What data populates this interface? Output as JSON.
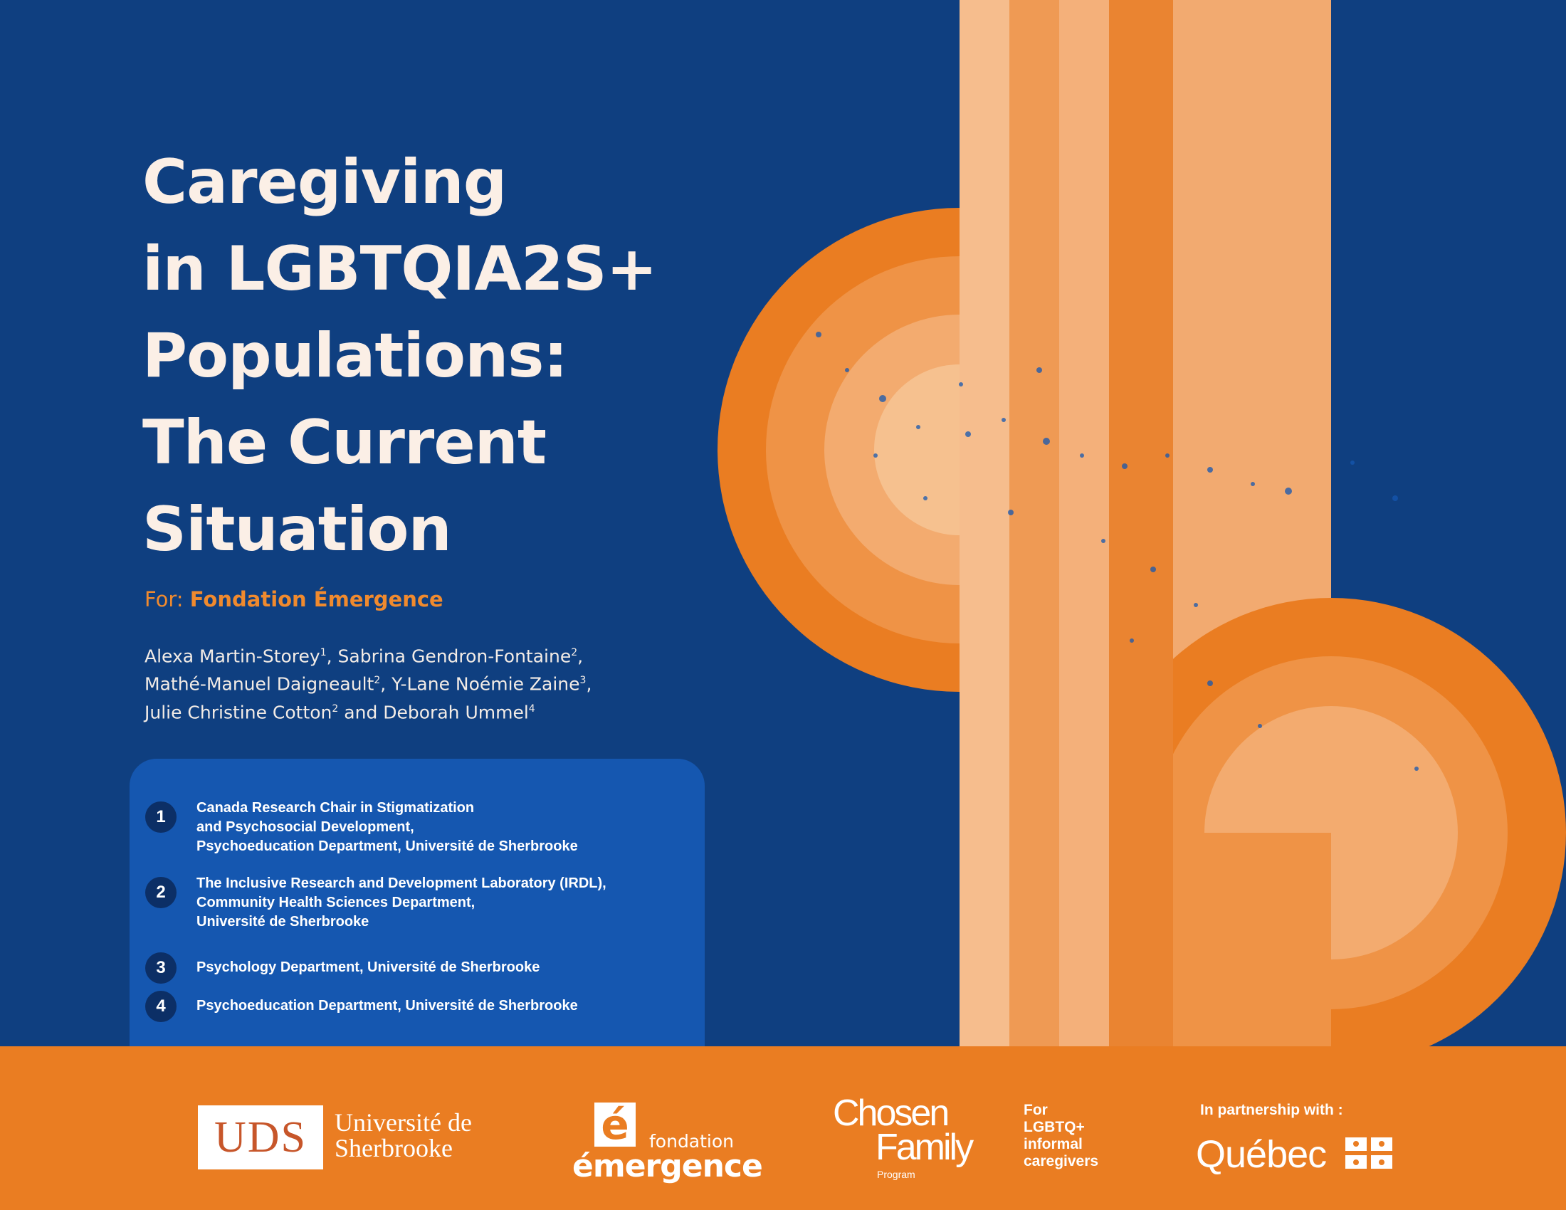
{
  "cover": {
    "title_lines": [
      "Caregiving",
      "in LGBTQIA2S+",
      "Populations:",
      "The Current",
      "Situation"
    ],
    "for_prefix": "For:",
    "for_org": "Fondation Émergence",
    "authors": [
      [
        {
          "name": "Alexa Martin-Storey",
          "sup": "1"
        },
        {
          "sep": ", "
        },
        {
          "name": "Sabrina Gendron-Fontaine",
          "sup": "2"
        },
        {
          "sep": ","
        }
      ],
      [
        {
          "name": "Mathé-Manuel Daigneault",
          "sup": "2"
        },
        {
          "sep": ", "
        },
        {
          "name": "Y-Lane Noémie Zaine",
          "sup": "3"
        },
        {
          "sep": ","
        }
      ],
      [
        {
          "name": "Julie Christine Cotton",
          "sup": "2"
        },
        {
          "sep": " and "
        },
        {
          "name": "Deborah Ummel",
          "sup": "4"
        }
      ]
    ],
    "affiliations": [
      {
        "num": "1",
        "lines": [
          "Canada Research Chair in Stigmatization",
          "and Psychosocial Development,",
          "Psychoeducation Department, Université de Sherbrooke"
        ]
      },
      {
        "num": "2",
        "lines": [
          "The Inclusive Research and Development Laboratory (IRDL),",
          "Community Health Sciences Department,",
          "Université de Sherbrooke"
        ]
      },
      {
        "num": "3",
        "lines": [
          "Psychology Department, Université de Sherbrooke"
        ]
      },
      {
        "num": "4",
        "lines": [
          "Psychoeducation Department, Université de Sherbrooke"
        ]
      }
    ]
  },
  "footer": {
    "uds_mark": "UDS",
    "uds_name_lines": [
      "Université de",
      "Sherbrooke"
    ],
    "fe_letter": "é",
    "fe_fondation": "fondation",
    "fe_emergence": "émergence",
    "cf_chosen": "Chosen",
    "cf_family": "Family",
    "cf_program": "Program",
    "cf_tag_lines": [
      "For",
      "LGBTQ+",
      "informal",
      "caregivers"
    ],
    "qc_partner": "In partnership with :",
    "qc_name": "Québec"
  },
  "colors": {
    "navy": "#0f3f80",
    "panel_blue": "#1557b0",
    "orange": "#ea7d22",
    "light_orange": "#f3b27a",
    "cream": "#fbefe6"
  }
}
